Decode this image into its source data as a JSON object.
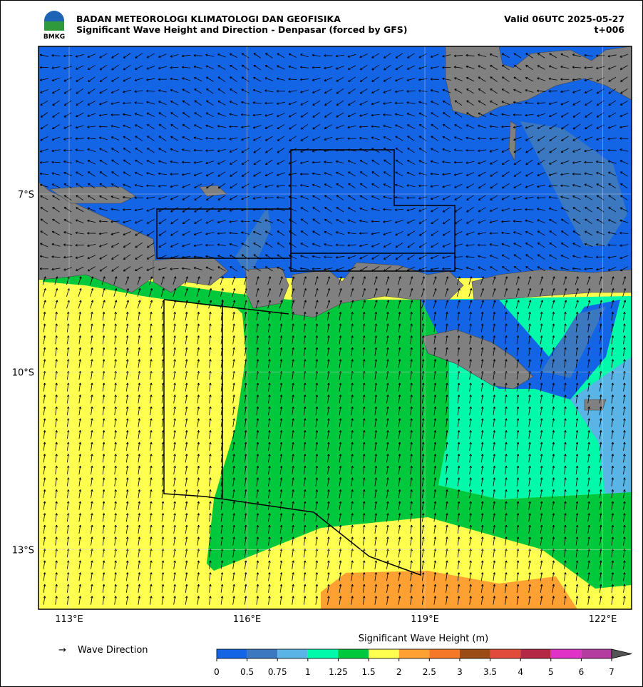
{
  "header": {
    "logo": "BMKG",
    "title": "BADAN METEOROLOGI KLIMATOLOGI DAN GEOFISIKA",
    "subtitle": "Significant Wave Height and Direction - Denpasar (forced by GFS)",
    "valid": "Valid 06UTC 2025-05-27",
    "lead": "t+006"
  },
  "map": {
    "lon_ticks": [
      {
        "value": 113,
        "label": "113°E"
      },
      {
        "value": 116,
        "label": "116°E"
      },
      {
        "value": 119,
        "label": "119°E"
      },
      {
        "value": 122,
        "label": "122°E"
      }
    ],
    "lat_ticks": [
      {
        "value": -7,
        "label": "7°S"
      },
      {
        "value": -10,
        "label": "10°S"
      },
      {
        "value": -13,
        "label": "13°S"
      }
    ]
  },
  "legend": {
    "arrow_label": "Wave Direction"
  },
  "colorbar": {
    "title": "Significant Wave Height (m)",
    "ticks": [
      0,
      0.5,
      0.75,
      1,
      1.25,
      1.5,
      2,
      2.5,
      3,
      3.5,
      4,
      5,
      6,
      7
    ],
    "colors": [
      "#1464e6",
      "#3c78c0",
      "#5ab4e6",
      "#00faaa",
      "#00c83c",
      "#ffff50",
      "#ffa032",
      "#f57828",
      "#9b4b14",
      "#e14b3c",
      "#b42846",
      "#e132c8",
      "#b43ca0"
    ]
  }
}
